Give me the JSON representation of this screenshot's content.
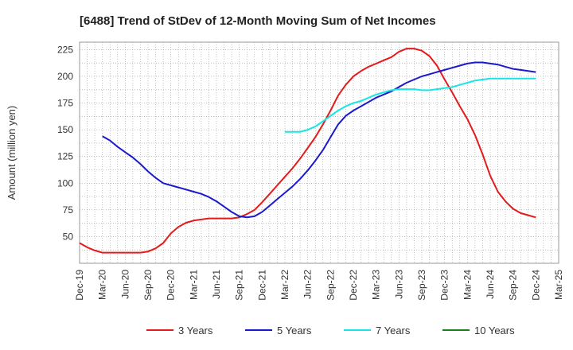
{
  "chart_data": {
    "type": "line",
    "title": "[6488]  Trend of StDev of 12-Month Moving Sum of Net Incomes",
    "xlabel": "",
    "ylabel": "Amount (million yen)",
    "ylim": [
      25,
      232
    ],
    "yticks": [
      50,
      75,
      100,
      125,
      150,
      175,
      200,
      225
    ],
    "x_ticks": [
      "Dec-19",
      "Mar-20",
      "Jun-20",
      "Sep-20",
      "Dec-20",
      "Mar-21",
      "Jun-21",
      "Sep-21",
      "Dec-21",
      "Mar-22",
      "Jun-22",
      "Sep-22",
      "Dec-22",
      "Mar-23",
      "Jun-23",
      "Sep-23",
      "Dec-23",
      "Mar-24",
      "Jun-24",
      "Sep-24",
      "Dec-24",
      "Mar-25"
    ],
    "grid": true,
    "legend_position": "bottom",
    "series": [
      {
        "name": "3 Years",
        "color": "#e41a1c",
        "x": [
          "Dec-19",
          "Jan-20",
          "Feb-20",
          "Mar-20",
          "Apr-20",
          "May-20",
          "Jun-20",
          "Jul-20",
          "Aug-20",
          "Sep-20",
          "Oct-20",
          "Nov-20",
          "Dec-20",
          "Jan-21",
          "Feb-21",
          "Mar-21",
          "Apr-21",
          "May-21",
          "Jun-21",
          "Jul-21",
          "Aug-21",
          "Sep-21",
          "Oct-21",
          "Nov-21",
          "Dec-21",
          "Jan-22",
          "Feb-22",
          "Mar-22",
          "Apr-22",
          "May-22",
          "Jun-22",
          "Jul-22",
          "Aug-22",
          "Sep-22",
          "Oct-22",
          "Nov-22",
          "Dec-22",
          "Jan-23",
          "Feb-23",
          "Mar-23",
          "Apr-23",
          "May-23",
          "Jun-23",
          "Jul-23",
          "Aug-23",
          "Sep-23",
          "Oct-23",
          "Nov-23",
          "Dec-23",
          "Jan-24",
          "Feb-24",
          "Mar-24",
          "Apr-24",
          "May-24",
          "Jun-24",
          "Jul-24",
          "Aug-24",
          "Sep-24",
          "Oct-24",
          "Nov-24",
          "Dec-24"
        ],
        "values": [
          44,
          40,
          37,
          35,
          35,
          35,
          35,
          35,
          35,
          36,
          39,
          44,
          53,
          59,
          63,
          65,
          66,
          67,
          67,
          67,
          67,
          68,
          71,
          75,
          82,
          90,
          98,
          106,
          114,
          123,
          133,
          143,
          155,
          168,
          182,
          192,
          200,
          205,
          209,
          212,
          215,
          218,
          223,
          226,
          226,
          224,
          219,
          210,
          197,
          185,
          172,
          160,
          145,
          127,
          107,
          92,
          83,
          76,
          72,
          70,
          68
        ]
      },
      {
        "name": "5 Years",
        "color": "#1a1acd",
        "x": [
          "Mar-20",
          "Apr-20",
          "May-20",
          "Jun-20",
          "Jul-20",
          "Aug-20",
          "Sep-20",
          "Oct-20",
          "Nov-20",
          "Dec-20",
          "Jan-21",
          "Feb-21",
          "Mar-21",
          "Apr-21",
          "May-21",
          "Jun-21",
          "Jul-21",
          "Aug-21",
          "Sep-21",
          "Oct-21",
          "Nov-21",
          "Dec-21",
          "Jan-22",
          "Feb-22",
          "Mar-22",
          "Apr-22",
          "May-22",
          "Jun-22",
          "Jul-22",
          "Aug-22",
          "Sep-22",
          "Oct-22",
          "Nov-22",
          "Dec-22",
          "Jan-23",
          "Feb-23",
          "Mar-23",
          "Apr-23",
          "May-23",
          "Jun-23",
          "Jul-23",
          "Aug-23",
          "Sep-23",
          "Oct-23",
          "Nov-23",
          "Dec-23",
          "Jan-24",
          "Feb-24",
          "Mar-24",
          "Apr-24",
          "May-24",
          "Jun-24",
          "Jul-24",
          "Aug-24",
          "Sep-24",
          "Oct-24",
          "Nov-24",
          "Dec-24"
        ],
        "values": [
          144,
          140,
          134,
          129,
          124,
          118,
          111,
          105,
          100,
          98,
          96,
          94,
          92,
          90,
          87,
          83,
          78,
          73,
          69,
          68,
          69,
          73,
          79,
          85,
          91,
          97,
          104,
          112,
          121,
          131,
          143,
          155,
          163,
          168,
          172,
          176,
          180,
          183,
          186,
          190,
          194,
          197,
          200,
          202,
          204,
          206,
          208,
          210,
          212,
          213,
          213,
          212,
          211,
          209,
          207,
          206,
          205,
          204
        ]
      },
      {
        "name": "7 Years",
        "color": "#19e5e5",
        "x": [
          "Mar-22",
          "Apr-22",
          "May-22",
          "Jun-22",
          "Jul-22",
          "Aug-22",
          "Sep-22",
          "Oct-22",
          "Nov-22",
          "Dec-22",
          "Jan-23",
          "Feb-23",
          "Mar-23",
          "Apr-23",
          "May-23",
          "Jun-23",
          "Jul-23",
          "Aug-23",
          "Sep-23",
          "Oct-23",
          "Nov-23",
          "Dec-23",
          "Jan-24",
          "Feb-24",
          "Mar-24",
          "Apr-24",
          "May-24",
          "Jun-24",
          "Jul-24",
          "Aug-24",
          "Sep-24",
          "Oct-24",
          "Nov-24",
          "Dec-24"
        ],
        "values": [
          148,
          148,
          148,
          150,
          153,
          158,
          163,
          168,
          172,
          175,
          177,
          180,
          183,
          185,
          187,
          188,
          188,
          188,
          187,
          187,
          188,
          189,
          190,
          192,
          194,
          196,
          197,
          198,
          198,
          198,
          198,
          198,
          198,
          198
        ]
      },
      {
        "name": "10 Years",
        "color": "#1a801a",
        "x": [],
        "values": []
      }
    ]
  }
}
